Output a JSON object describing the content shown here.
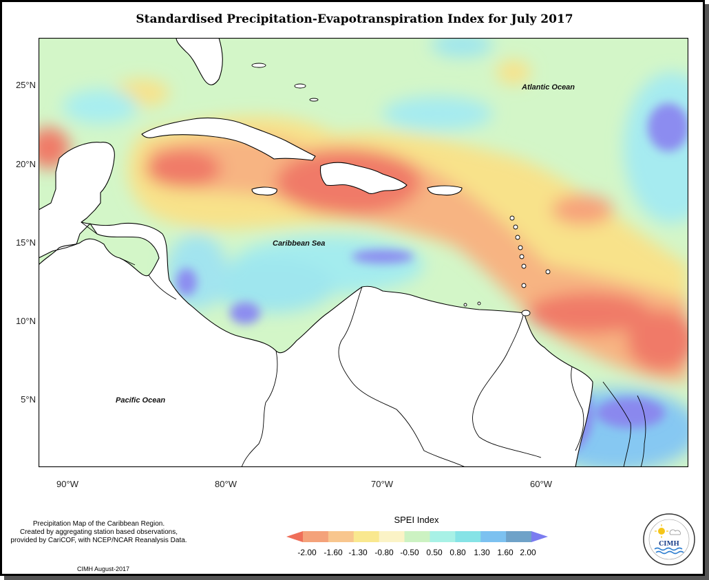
{
  "title": "Standardised Precipitation-Evapotranspiration Index for July 2017",
  "ocean_labels": {
    "atlantic": "Atlantic Ocean",
    "caribbean": "Caribbean Sea",
    "pacific": "Pacific Ocean"
  },
  "axes": {
    "y_ticks": [
      "25°N",
      "20°N",
      "15°N",
      "10°N",
      "5°N"
    ],
    "x_ticks": [
      "90°W",
      "80°W",
      "70°W",
      "60°W"
    ]
  },
  "footnote": {
    "line1": "Precipitation Map of the Caribbean Region.",
    "line2": "Created by aggregating station based observations,",
    "line3": "provided by CariCOF, with NCEP/NCAR Reanalysis Data."
  },
  "credit": "CIMH August-2017",
  "legend": {
    "title": "SPEI Index",
    "labels": [
      "-2.00",
      "-1.60",
      "-1.30",
      "-0.80",
      "-0.50",
      "0.50",
      "0.80",
      "1.30",
      "1.60",
      "2.00"
    ],
    "colors": [
      "#ef6f59",
      "#f4a27a",
      "#f8c68e",
      "#f9e88f",
      "#fbf3c6",
      "#ccf2c2",
      "#a8f1e6",
      "#86e3e6",
      "#7cc1f0",
      "#6fa2c8",
      "#7b7cf0"
    ]
  },
  "logo_text": "CIMH"
}
